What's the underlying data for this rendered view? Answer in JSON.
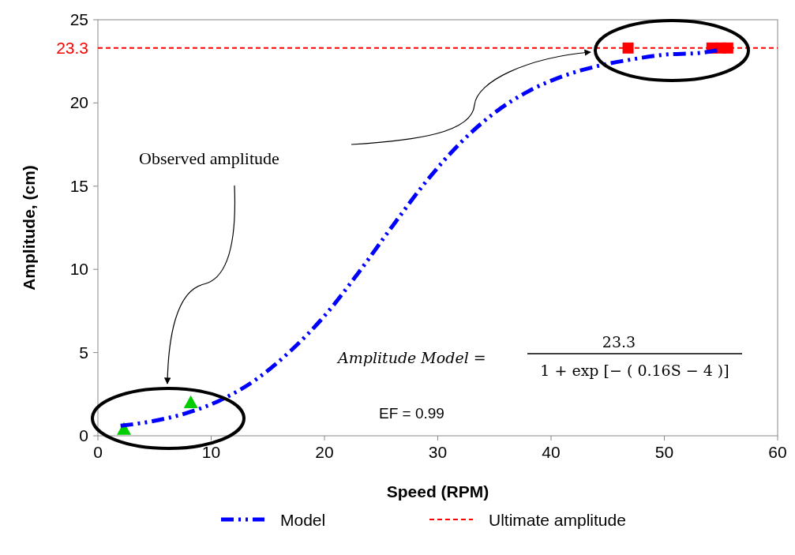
{
  "chart_data": {
    "type": "line",
    "xlabel": "Speed (RPM)",
    "ylabel": "Amplitude, (cm)",
    "xlim": [
      0,
      60
    ],
    "xticks": [
      0,
      10,
      20,
      30,
      40,
      50,
      60
    ],
    "ylim": [
      0,
      25
    ],
    "yticks": [
      0,
      5,
      10,
      15,
      20,
      25
    ],
    "grid": false,
    "legend": "bottom",
    "series": [
      {
        "name": "Model",
        "color": "#0000ff",
        "line_style": "dashed",
        "marker": "none",
        "x": [
          2,
          5,
          8,
          11,
          14,
          17,
          20,
          23,
          26,
          29,
          32,
          35,
          38,
          41,
          44,
          47,
          50,
          53,
          55
        ],
        "values": [
          0.6,
          0.9,
          1.4,
          2.2,
          3.4,
          5.1,
          7.2,
          9.8,
          12.6,
          15.3,
          17.6,
          19.4,
          20.7,
          21.6,
          22.2,
          22.6,
          22.9,
          23.0,
          23.2
        ]
      },
      {
        "type": "scatter",
        "color": "#00cc00",
        "marker": "triangle",
        "x": [
          2.3,
          8.2
        ],
        "values": [
          0.4,
          2.0
        ]
      },
      {
        "type": "scatter",
        "color": "#ff0000",
        "marker": "square",
        "x": [
          46.8,
          54.2,
          55.0,
          55.6
        ],
        "values": [
          23.3,
          23.3,
          23.3,
          23.3
        ]
      }
    ],
    "ref_lines": [
      {
        "axis": "y",
        "value": 23.3,
        "label": "Ultimate amplitude",
        "color": "#ff0000",
        "line_style": "dashed"
      }
    ],
    "annotations": [
      "Observed amplitude",
      "Amplitude Model =",
      "23.3",
      "1 + exp [− ( 0.16S − 4 )]",
      "EF = 0.99",
      "23.3"
    ]
  }
}
